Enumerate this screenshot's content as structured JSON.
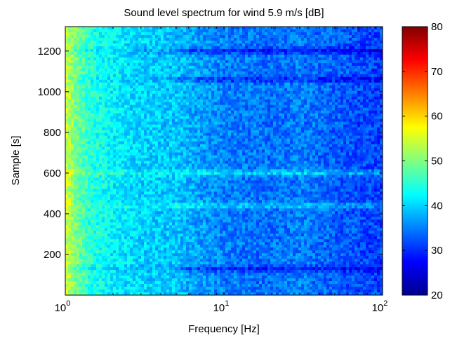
{
  "chart_data": {
    "type": "heatmap",
    "title": "Sound level spectrum for wind 5.9 m/s [dB]",
    "xlabel": "Frequency [Hz]",
    "ylabel": "Sample [s]",
    "x_scale": "log",
    "xlim": [
      1,
      100
    ],
    "ylim": [
      0,
      1320
    ],
    "x_ticks": [
      {
        "value": 1,
        "base": "10",
        "exp": "0"
      },
      {
        "value": 10,
        "base": "10",
        "exp": "1"
      },
      {
        "value": 100,
        "base": "10",
        "exp": "2"
      }
    ],
    "y_ticks": [
      200,
      400,
      600,
      800,
      1000,
      1200
    ],
    "colorbar": {
      "min": 20,
      "max": 80,
      "ticks": [
        20,
        30,
        40,
        50,
        60,
        70,
        80
      ],
      "colormap": "jet"
    },
    "level_profile_db": {
      "frequency_hz": [
        1.0,
        1.15,
        1.4,
        2.0,
        3.0,
        5.0,
        7.0,
        10.0,
        20.0,
        30.0,
        50.0,
        100.0
      ],
      "level_db": [
        55,
        50,
        45,
        42,
        40,
        39,
        37,
        35,
        34,
        35,
        33,
        31
      ]
    },
    "band_features": [
      {
        "sample_s": 1200,
        "feature": "low level band",
        "level_db": 27
      },
      {
        "sample_s": 1060,
        "feature": "low level band",
        "level_db": 29
      },
      {
        "sample_s": 600,
        "feature": "elevated level",
        "level_db": 48
      },
      {
        "sample_s": 440,
        "feature": "elevated level",
        "level_db": 47
      },
      {
        "sample_s": 130,
        "feature": "low level band",
        "level_db": 29
      }
    ]
  }
}
